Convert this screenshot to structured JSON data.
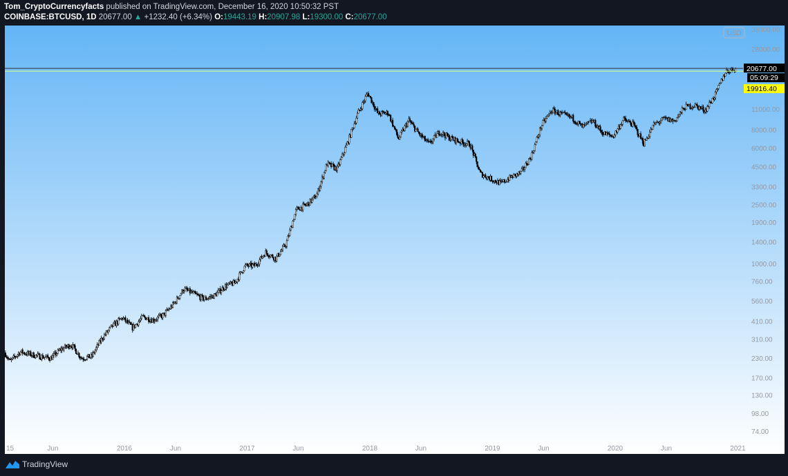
{
  "header": {
    "author": "Tom_CryptoCurrencyfacts",
    "published": "published on TradingView.com, December 16, 2020 10:50:32 PST",
    "symbol": "COINBASE:BTCUSD, 1D",
    "last": "20677.00",
    "change": "+1232.40 (+6.34%)",
    "o_label": "O:",
    "o": "19443.19",
    "h_label": "H:",
    "h": "20907.98",
    "l_label": "L:",
    "l": "19300.00",
    "c_label": "C:",
    "c": "20677.00"
  },
  "footer": {
    "brand": "TradingView"
  },
  "colors": {
    "background_top": "#64b5f6",
    "background_bottom": "#ffffff",
    "candles": "#000000",
    "price_line": "#000000",
    "alert_line": "#c6ff8a",
    "alert_label": "#ffff00"
  },
  "chart_data": {
    "type": "candlestick",
    "title": "COINBASE:BTCUSD, 1D",
    "y_scale": "log",
    "currency": "USD",
    "ylim": [
      65,
      40000
    ],
    "xlim": [
      "2015-01",
      "2021-01"
    ],
    "y_ticks": [
      "38000.00",
      "28000.00",
      "11000.00",
      "8000.00",
      "6000.00",
      "4500.00",
      "3300.00",
      "2500.00",
      "1900.00",
      "1400.00",
      "1000.00",
      "760.00",
      "560.00",
      "410.00",
      "310.00",
      "230.00",
      "170.00",
      "130.00",
      "98.00",
      "74.00"
    ],
    "x_ticks": [
      {
        "label": "15",
        "date": "2015-01"
      },
      {
        "label": "Jun",
        "date": "2015-06"
      },
      {
        "label": "2016",
        "date": "2016-01"
      },
      {
        "label": "Jun",
        "date": "2016-06"
      },
      {
        "label": "2017",
        "date": "2017-01"
      },
      {
        "label": "Jun",
        "date": "2017-06"
      },
      {
        "label": "2018",
        "date": "2018-01"
      },
      {
        "label": "Jun",
        "date": "2018-06"
      },
      {
        "label": "2019",
        "date": "2019-01"
      },
      {
        "label": "Jun",
        "date": "2019-06"
      },
      {
        "label": "2020",
        "date": "2020-01"
      },
      {
        "label": "Jun",
        "date": "2020-06"
      },
      {
        "label": "2021",
        "date": "2021-01"
      }
    ],
    "monthly_closes_approx": {
      "2015": [
        218,
        254,
        244,
        236,
        230,
        264,
        284,
        230,
        236,
        314,
        378,
        430
      ],
      "2016": [
        368,
        437,
        416,
        448,
        531,
        673,
        624,
        575,
        609,
        700,
        742,
        963
      ],
      "2017": [
        970,
        1190,
        1080,
        1350,
        2300,
        2480,
        2880,
        4700,
        4340,
        6470,
        10200,
        14150
      ],
      "2018": [
        10200,
        10400,
        6900,
        9240,
        7500,
        6390,
        7730,
        7030,
        6630,
        6370,
        4040,
        3740
      ],
      "2019": [
        3460,
        3820,
        4100,
        5320,
        8570,
        10800,
        10100,
        9600,
        8300,
        9150,
        7550,
        7200
      ],
      "2020": [
        9350,
        8600,
        6440,
        8660,
        9450,
        9140,
        11350,
        11650,
        10780,
        13800,
        19700,
        20677
      ]
    },
    "last_price": {
      "value": 20677.0,
      "label": "20677.00",
      "countdown": "05:09:29"
    },
    "alert": {
      "value": 19916.4,
      "label": "19916.40"
    },
    "grid": false,
    "legend": "none"
  }
}
